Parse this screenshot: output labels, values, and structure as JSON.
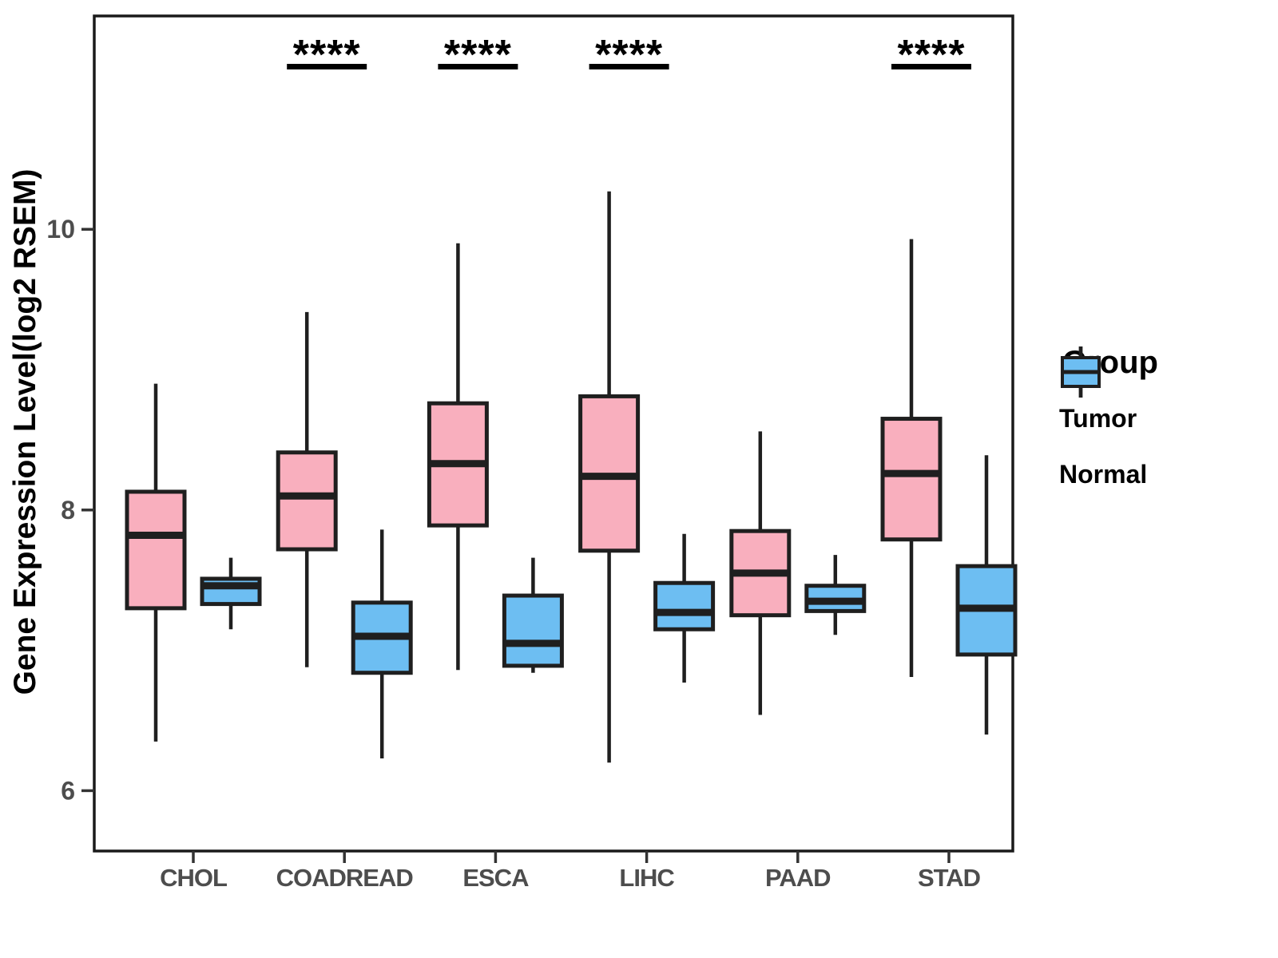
{
  "figure": {
    "y_axis_title": "Gene Expression Level(log2 RSEM)"
  },
  "legend": {
    "title": "Group",
    "entries": [
      {
        "label": "Tumor",
        "color": "#F9AFBE"
      },
      {
        "label": "Normal",
        "color": "#6DBEF2"
      }
    ]
  },
  "chart_data": {
    "type": "boxplot",
    "title": "",
    "xlabel": "",
    "ylabel": "Gene Expression Level(log2 RSEM)",
    "categories": [
      "CHOL",
      "COADREAD",
      "ESCA",
      "LIHC",
      "PAAD",
      "STAD"
    ],
    "ylim": [
      5.57,
      11.52
    ],
    "yticks": [
      6,
      8,
      10
    ],
    "grid": false,
    "legend_position": "right",
    "box_outline_color": "#1f1f1f",
    "series": [
      {
        "name": "Tumor",
        "color": "#F9AFBE",
        "stats": [
          {
            "category": "CHOL",
            "whisker_low": 6.35,
            "q1": 7.3,
            "median": 7.82,
            "q3": 8.13,
            "whisker_high": 8.9
          },
          {
            "category": "COADREAD",
            "whisker_low": 6.88,
            "q1": 7.72,
            "median": 8.1,
            "q3": 8.41,
            "whisker_high": 9.41
          },
          {
            "category": "ESCA",
            "whisker_low": 6.86,
            "q1": 7.89,
            "median": 8.33,
            "q3": 8.76,
            "whisker_high": 9.9
          },
          {
            "category": "LIHC",
            "whisker_low": 6.2,
            "q1": 7.71,
            "median": 8.24,
            "q3": 8.81,
            "whisker_high": 10.27
          },
          {
            "category": "PAAD",
            "whisker_low": 6.54,
            "q1": 7.25,
            "median": 7.55,
            "q3": 7.85,
            "whisker_high": 8.56
          },
          {
            "category": "STAD",
            "whisker_low": 6.81,
            "q1": 7.79,
            "median": 8.26,
            "q3": 8.65,
            "whisker_high": 9.93
          }
        ]
      },
      {
        "name": "Normal",
        "color": "#6DBEF2",
        "stats": [
          {
            "category": "CHOL",
            "whisker_low": 7.15,
            "q1": 7.33,
            "median": 7.46,
            "q3": 7.51,
            "whisker_high": 7.66
          },
          {
            "category": "COADREAD",
            "whisker_low": 6.23,
            "q1": 6.84,
            "median": 7.1,
            "q3": 7.34,
            "whisker_high": 7.86
          },
          {
            "category": "ESCA",
            "whisker_low": 6.84,
            "q1": 6.89,
            "median": 7.05,
            "q3": 7.39,
            "whisker_high": 7.66
          },
          {
            "category": "LIHC",
            "whisker_low": 6.77,
            "q1": 7.15,
            "median": 7.27,
            "q3": 7.48,
            "whisker_high": 7.83
          },
          {
            "category": "PAAD",
            "whisker_low": 7.11,
            "q1": 7.28,
            "median": 7.35,
            "q3": 7.46,
            "whisker_high": 7.68
          },
          {
            "category": "STAD",
            "whisker_low": 6.4,
            "q1": 6.97,
            "median": 7.3,
            "q3": 7.6,
            "whisker_high": 8.39
          }
        ]
      }
    ],
    "significance_annotations": [
      {
        "category": "COADREAD",
        "label": "****"
      },
      {
        "category": "ESCA",
        "label": "****"
      },
      {
        "category": "LIHC",
        "label": "****"
      },
      {
        "category": "STAD",
        "label": "****"
      }
    ]
  }
}
